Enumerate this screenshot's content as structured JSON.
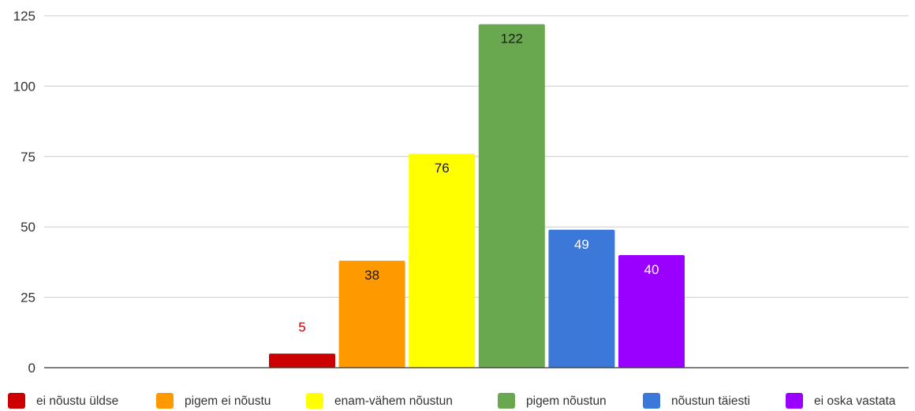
{
  "chart_data": {
    "type": "bar",
    "title": "",
    "xlabel": "",
    "ylabel": "",
    "ylim": [
      0,
      125
    ],
    "yticks": [
      0,
      25,
      50,
      75,
      100,
      125
    ],
    "grid": true,
    "legend_position": "bottom",
    "series": [
      {
        "name": "ei nõustu üldse",
        "value": 5,
        "color": "#cc0000",
        "label_color": "#cc0000",
        "label_position": "above"
      },
      {
        "name": "pigem ei nõustu",
        "value": 38,
        "color": "#ff9900",
        "label_color": "#1a1a1a",
        "label_position": "inside"
      },
      {
        "name": "enam-vähem nõustun",
        "value": 76,
        "color": "#ffff00",
        "label_color": "#1a1a1a",
        "label_position": "inside"
      },
      {
        "name": "pigem nõustun",
        "value": 122,
        "color": "#6aa84f",
        "label_color": "#1a1a1a",
        "label_position": "inside"
      },
      {
        "name": "nõustun täiesti",
        "value": 49,
        "color": "#3c78d8",
        "label_color": "#ffffff",
        "label_position": "inside"
      },
      {
        "name": "ei oska vastata",
        "value": 40,
        "color": "#9900ff",
        "label_color": "#ffffff",
        "label_position": "inside"
      }
    ]
  }
}
